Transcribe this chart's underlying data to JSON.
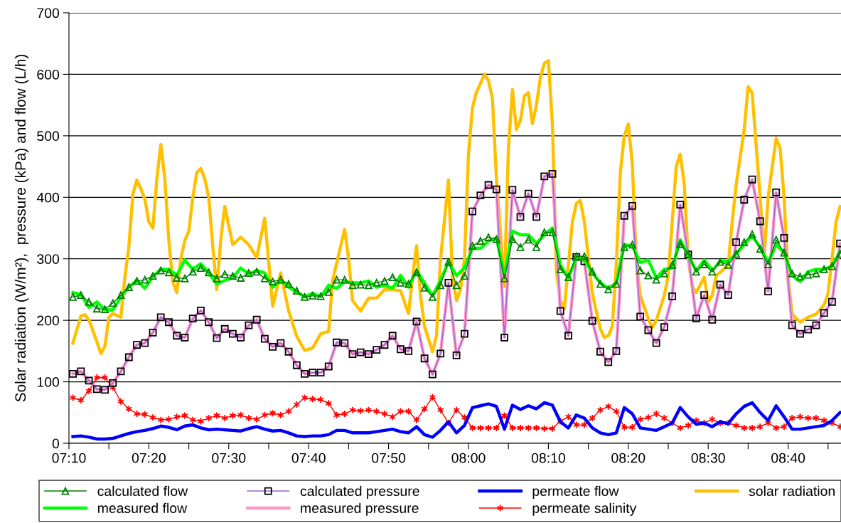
{
  "chart_data": {
    "type": "line",
    "ylabel": "Solar radiation (W/m²),  pressure (kPa) and flow (L/h)",
    "xlim": [
      7.1667,
      8.777
    ],
    "ylim": [
      0,
      700
    ],
    "yticks": [
      0,
      100,
      200,
      300,
      400,
      500,
      600,
      700
    ],
    "xticks": [
      {
        "value": 7.1667,
        "label": "07:10"
      },
      {
        "value": 7.25,
        "label": null
      },
      {
        "value": 7.3333,
        "label": "07:20"
      },
      {
        "value": 7.4167,
        "label": null
      },
      {
        "value": 7.5,
        "label": "07:30"
      },
      {
        "value": 7.5833,
        "label": null
      },
      {
        "value": 7.6667,
        "label": "07:40"
      },
      {
        "value": 7.75,
        "label": null
      },
      {
        "value": 7.8333,
        "label": "07:50"
      },
      {
        "value": 7.9167,
        "label": null
      },
      {
        "value": 8.0,
        "label": "08:00"
      },
      {
        "value": 8.0833,
        "label": null
      },
      {
        "value": 8.1667,
        "label": "08:10"
      },
      {
        "value": 8.25,
        "label": null
      },
      {
        "value": 8.3333,
        "label": "08:20"
      },
      {
        "value": 8.4167,
        "label": null
      },
      {
        "value": 8.5,
        "label": "08:30"
      },
      {
        "value": 8.5833,
        "label": null
      },
      {
        "value": 8.6667,
        "label": "08:40"
      },
      {
        "value": 8.75,
        "label": null
      }
    ],
    "grid": "y",
    "legend": "bottom",
    "x": [
      7.175,
      7.1917,
      7.2083,
      7.225,
      7.2417,
      7.2583,
      7.275,
      7.2917,
      7.3083,
      7.325,
      7.3417,
      7.3583,
      7.375,
      7.3917,
      7.4083,
      7.425,
      7.4417,
      7.4583,
      7.475,
      7.4917,
      7.5083,
      7.525,
      7.5417,
      7.5583,
      7.575,
      7.5917,
      7.6083,
      7.625,
      7.6417,
      7.6583,
      7.675,
      7.6917,
      7.7083,
      7.725,
      7.7417,
      7.7583,
      7.775,
      7.7917,
      7.8083,
      7.825,
      7.8417,
      7.8583,
      7.875,
      7.8917,
      7.9083,
      7.925,
      7.9417,
      7.9583,
      7.975,
      7.9917,
      8.0083,
      8.025,
      8.0417,
      8.0583,
      8.075,
      8.0917,
      8.1083,
      8.125,
      8.1417,
      8.1583,
      8.175,
      8.1917,
      8.2083,
      8.225,
      8.2417,
      8.2583,
      8.275,
      8.2917,
      8.3083,
      8.325,
      8.3417,
      8.3583,
      8.375,
      8.3917,
      8.4083,
      8.425,
      8.4417,
      8.4583,
      8.475,
      8.4917,
      8.5083,
      8.525,
      8.5417,
      8.5583,
      8.575,
      8.5917,
      8.6083,
      8.625,
      8.6417,
      8.6583,
      8.675,
      8.6917,
      8.7083,
      8.725,
      8.7417,
      8.7583,
      8.775
    ],
    "series": [
      {
        "name": "calculated flow",
        "color": "#008000",
        "marker": "triangle",
        "values": [
          238,
          241,
          230,
          219,
          218,
          228,
          241,
          254,
          264,
          266,
          272,
          281,
          278,
          269,
          268,
          279,
          285,
          278,
          268,
          275,
          272,
          269,
          277,
          279,
          268,
          263,
          266,
          259,
          248,
          238,
          240,
          239,
          246,
          266,
          266,
          257,
          258,
          257,
          261,
          264,
          270,
          261,
          259,
          278,
          253,
          238,
          257,
          295,
          257,
          272,
          321,
          329,
          335,
          332,
          268,
          332,
          319,
          331,
          319,
          343,
          343,
          283,
          270,
          304,
          304,
          279,
          259,
          250,
          259,
          319,
          323,
          281,
          273,
          266,
          276,
          290,
          324,
          308,
          279,
          291,
          279,
          295,
          290,
          308,
          327,
          340,
          316,
          291,
          331,
          310,
          276,
          271,
          274,
          276,
          283,
          288,
          308
        ]
      },
      {
        "name": "measured flow",
        "color": "#00ff00",
        "values": [
          245,
          242,
          221,
          230,
          217,
          217,
          238,
          254,
          265,
          252,
          271,
          283,
          283,
          273,
          298,
          283,
          292,
          277,
          259,
          265,
          269,
          285,
          275,
          281,
          277,
          254,
          265,
          254,
          246,
          238,
          244,
          238,
          257,
          252,
          263,
          261,
          261,
          264,
          254,
          257,
          252,
          273,
          254,
          281,
          261,
          240,
          265,
          295,
          273,
          285,
          317,
          317,
          329,
          334,
          273,
          345,
          339,
          339,
          325,
          339,
          350,
          290,
          269,
          302,
          298,
          277,
          261,
          252,
          261,
          323,
          321,
          294,
          298,
          269,
          283,
          285,
          331,
          306,
          280,
          298,
          281,
          296,
          296,
          308,
          323,
          337,
          319,
          294,
          323,
          310,
          273,
          263,
          279,
          283,
          283,
          288,
          312
        ]
      },
      {
        "name": "calculated pressure",
        "color": "#9966cc",
        "marker": "square",
        "values": [
          113,
          117,
          102,
          88,
          87,
          98,
          117,
          140,
          160,
          163,
          180,
          205,
          197,
          175,
          172,
          203,
          216,
          197,
          171,
          186,
          178,
          172,
          192,
          201,
          170,
          157,
          163,
          149,
          127,
          113,
          115,
          115,
          125,
          164,
          163,
          145,
          148,
          145,
          152,
          160,
          175,
          153,
          150,
          198,
          138,
          112,
          146,
          261,
          143,
          178,
          377,
          403,
          420,
          413,
          172,
          412,
          368,
          406,
          368,
          434,
          438,
          215,
          175,
          303,
          296,
          199,
          149,
          132,
          150,
          370,
          386,
          206,
          184,
          163,
          189,
          239,
          388,
          307,
          203,
          241,
          201,
          258,
          241,
          327,
          396,
          429,
          361,
          247,
          408,
          334,
          192,
          178,
          185,
          192,
          212,
          230,
          325
        ]
      },
      {
        "name": "measured pressure",
        "color": "#ff99cc",
        "values": [
          113,
          117,
          102,
          88,
          87,
          98,
          117,
          140,
          160,
          163,
          180,
          205,
          197,
          175,
          172,
          203,
          216,
          197,
          171,
          186,
          178,
          172,
          192,
          201,
          170,
          157,
          163,
          149,
          127,
          113,
          115,
          115,
          125,
          164,
          163,
          145,
          148,
          145,
          152,
          160,
          175,
          153,
          150,
          198,
          138,
          112,
          146,
          261,
          143,
          178,
          377,
          403,
          420,
          413,
          172,
          412,
          368,
          406,
          368,
          434,
          438,
          215,
          175,
          303,
          296,
          199,
          149,
          132,
          150,
          370,
          386,
          206,
          184,
          163,
          189,
          239,
          388,
          307,
          203,
          241,
          201,
          258,
          241,
          327,
          396,
          429,
          361,
          247,
          408,
          334,
          192,
          178,
          185,
          192,
          212,
          230,
          325
        ]
      },
      {
        "name": "permeate flow",
        "color": "#0000ff",
        "values": [
          11,
          12,
          10,
          7,
          7,
          8,
          12,
          16,
          19,
          21,
          24,
          28,
          26,
          22,
          28,
          30,
          25,
          22,
          23,
          22,
          21,
          20,
          24,
          27,
          23,
          20,
          21,
          17,
          12,
          11,
          12,
          12,
          14,
          21,
          21,
          17,
          17,
          17,
          19,
          21,
          23,
          19,
          17,
          27,
          14,
          10,
          21,
          35,
          17,
          29,
          58,
          61,
          64,
          60,
          23,
          62,
          55,
          61,
          56,
          66,
          62,
          35,
          25,
          46,
          41,
          25,
          17,
          14,
          17,
          58,
          48,
          25,
          23,
          21,
          27,
          33,
          58,
          43,
          31,
          33,
          27,
          35,
          32,
          48,
          60,
          66,
          50,
          37,
          61,
          43,
          23,
          23,
          25,
          27,
          29,
          37,
          50
        ]
      },
      {
        "name": "permeate salinity",
        "color": "#ff0000",
        "marker": "cross",
        "values": [
          74,
          70,
          85,
          107,
          107,
          91,
          68,
          56,
          48,
          47,
          42,
          38,
          39,
          43,
          45,
          38,
          36,
          41,
          45,
          41,
          45,
          46,
          41,
          39,
          46,
          49,
          46,
          52,
          63,
          74,
          72,
          71,
          65,
          46,
          48,
          54,
          53,
          54,
          52,
          48,
          43,
          52,
          52,
          38,
          56,
          75,
          54,
          33,
          54,
          42,
          25,
          25,
          25,
          25,
          45,
          25,
          25,
          25,
          25,
          24,
          24,
          36,
          43,
          30,
          30,
          41,
          54,
          60,
          52,
          26,
          26,
          39,
          42,
          48,
          41,
          33,
          25,
          29,
          37,
          33,
          39,
          33,
          33,
          29,
          25,
          25,
          27,
          33,
          25,
          27,
          41,
          43,
          41,
          41,
          37,
          33,
          27
        ]
      },
      {
        "name": "solar radiation",
        "color": "#ffc000",
        "x": [
          7.175,
          7.1833,
          7.1917,
          7.2,
          7.2083,
          7.225,
          7.2333,
          7.2417,
          7.25,
          7.2583,
          7.275,
          7.2833,
          7.2917,
          7.3,
          7.3083,
          7.3167,
          7.325,
          7.3333,
          7.3417,
          7.35,
          7.3583,
          7.3667,
          7.375,
          7.3833,
          7.3917,
          7.4,
          7.4083,
          7.4167,
          7.425,
          7.4333,
          7.4417,
          7.45,
          7.4583,
          7.4667,
          7.475,
          7.4833,
          7.4917,
          7.5083,
          7.525,
          7.5417,
          7.5583,
          7.575,
          7.5917,
          7.6083,
          7.625,
          7.6417,
          7.6583,
          7.675,
          7.6917,
          7.7083,
          7.7167,
          7.7417,
          7.75,
          7.7583,
          7.775,
          7.7917,
          7.8083,
          7.825,
          7.8417,
          7.8583,
          7.875,
          7.8833,
          7.8917,
          7.9,
          7.9083,
          7.925,
          7.9333,
          7.9417,
          7.9583,
          7.9667,
          7.975,
          7.9833,
          7.9917,
          8.0,
          8.0083,
          8.0167,
          8.025,
          8.0333,
          8.0417,
          8.05,
          8.0583,
          8.075,
          8.0833,
          8.0917,
          8.1,
          8.1083,
          8.1167,
          8.125,
          8.1333,
          8.1417,
          8.15,
          8.1583,
          8.1667,
          8.175,
          8.1833,
          8.1917,
          8.2,
          8.2083,
          8.2167,
          8.225,
          8.2333,
          8.2417,
          8.2583,
          8.275,
          8.2833,
          8.2917,
          8.3,
          8.3083,
          8.3167,
          8.325,
          8.3333,
          8.3417,
          8.35,
          8.3583,
          8.375,
          8.3833,
          8.3917,
          8.4083,
          8.4167,
          8.425,
          8.4333,
          8.4417,
          8.45,
          8.4583,
          8.4667,
          8.475,
          8.4917,
          8.5,
          8.5083,
          8.5167,
          8.525,
          8.5417,
          8.55,
          8.5583,
          8.575,
          8.5833,
          8.5917,
          8.6083,
          8.6167,
          8.625,
          8.6417,
          8.65,
          8.6583,
          8.6667,
          8.675,
          8.6917,
          8.7083,
          8.725,
          8.7417,
          8.75,
          8.7583,
          8.7667,
          8.775
        ],
        "values": [
          163,
          185,
          207,
          209,
          201,
          165,
          146,
          158,
          205,
          211,
          205,
          270,
          320,
          405,
          428,
          414,
          397,
          360,
          350,
          430,
          486,
          430,
          330,
          262,
          245,
          300,
          330,
          345,
          400,
          440,
          447,
          430,
          400,
          320,
          250,
          331,
          385,
          323,
          335,
          323,
          302,
          366,
          223,
          277,
          215,
          174,
          151,
          155,
          178,
          182,
          265,
          348,
          300,
          232,
          215,
          236,
          236,
          250,
          250,
          248,
          211,
          270,
          321,
          240,
          190,
          149,
          175,
          300,
          428,
          270,
          232,
          250,
          300,
          470,
          546,
          571,
          585,
          600,
          590,
          560,
          430,
          255,
          480,
          575,
          510,
          525,
          565,
          570,
          520,
          550,
          595,
          618,
          622,
          520,
          280,
          232,
          219,
          290,
          360,
          390,
          395,
          360,
          244,
          186,
          172,
          175,
          190,
          290,
          440,
          500,
          519,
          455,
          298,
          240,
          203,
          188,
          200,
          240,
          273,
          360,
          450,
          470,
          422,
          300,
          255,
          245,
          270,
          230,
          240,
          273,
          278,
          290,
          360,
          420,
          510,
          580,
          570,
          400,
          302,
          400,
          496,
          480,
          400,
          270,
          210,
          197,
          205,
          210,
          225,
          244,
          300,
          360,
          385
        ]
      }
    ]
  }
}
